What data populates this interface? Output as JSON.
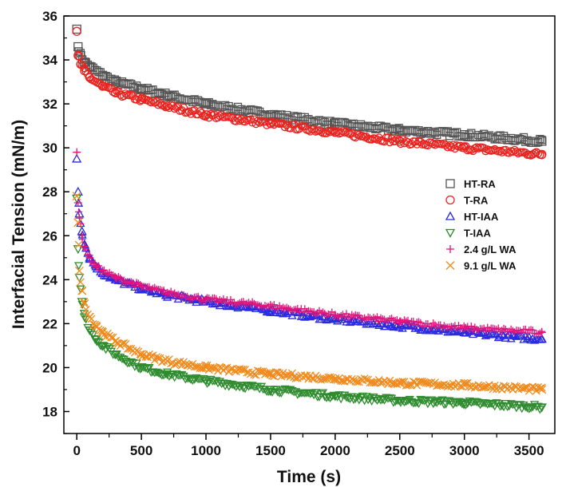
{
  "chart_data": {
    "type": "scatter",
    "title": "",
    "xlabel": "Time (s)",
    "ylabel": "Interfacial Tension (mN/m)",
    "xlim": [
      -100,
      3700
    ],
    "ylim": [
      17,
      36
    ],
    "xticks": [
      0,
      500,
      1000,
      1500,
      2000,
      2500,
      3000,
      3500
    ],
    "yticks": [
      18,
      20,
      22,
      24,
      26,
      28,
      30,
      32,
      34,
      36
    ],
    "grid": false,
    "legend": "right",
    "series": [
      {
        "name": "HT-RA",
        "marker": "square",
        "color": "#555555",
        "x": [
          0,
          10,
          30,
          60,
          100,
          200,
          300,
          500,
          700,
          1000,
          1500,
          2000,
          2500,
          3000,
          3600
        ],
        "y": [
          35.4,
          34.6,
          34.2,
          33.9,
          33.7,
          33.3,
          33.0,
          32.7,
          32.4,
          32.0,
          31.5,
          31.1,
          30.8,
          30.6,
          30.3
        ]
      },
      {
        "name": "T-RA",
        "marker": "circle",
        "color": "#e8231f",
        "x": [
          0,
          10,
          30,
          60,
          100,
          200,
          300,
          500,
          700,
          1000,
          1500,
          2000,
          2500,
          3000,
          3600
        ],
        "y": [
          35.3,
          34.2,
          33.8,
          33.5,
          33.2,
          32.8,
          32.5,
          32.2,
          31.9,
          31.5,
          31.1,
          30.7,
          30.3,
          30.0,
          29.7
        ]
      },
      {
        "name": "HT-IAA",
        "marker": "triangle-up",
        "color": "#2a2ae0",
        "x": [
          0,
          10,
          20,
          40,
          60,
          100,
          150,
          200,
          300,
          500,
          700,
          1000,
          1500,
          2000,
          2500,
          3000,
          3600
        ],
        "y": [
          29.5,
          28.0,
          27.0,
          26.2,
          25.6,
          25.0,
          24.6,
          24.3,
          24.0,
          23.6,
          23.3,
          23.0,
          22.6,
          22.2,
          21.9,
          21.6,
          21.3
        ]
      },
      {
        "name": "T-IAA",
        "marker": "triangle-down",
        "color": "#2e8b2e",
        "x": [
          0,
          10,
          20,
          40,
          60,
          100,
          150,
          200,
          300,
          500,
          700,
          1000,
          1500,
          2000,
          2500,
          3000,
          3600
        ],
        "y": [
          27.7,
          25.4,
          24.1,
          23.0,
          22.3,
          21.7,
          21.3,
          21.0,
          20.6,
          20.0,
          19.7,
          19.4,
          19.0,
          18.7,
          18.5,
          18.4,
          18.2
        ]
      },
      {
        "name": "2.4 g/L WA",
        "marker": "plus",
        "color": "#e0147a",
        "x": [
          0,
          10,
          20,
          40,
          60,
          100,
          150,
          200,
          300,
          500,
          700,
          1000,
          1500,
          2000,
          2500,
          3000,
          3600
        ],
        "y": [
          29.8,
          27.5,
          26.8,
          26.0,
          25.5,
          25.0,
          24.6,
          24.4,
          24.1,
          23.7,
          23.4,
          23.1,
          22.8,
          22.4,
          22.1,
          21.8,
          21.6
        ]
      },
      {
        "name": "9.1 g/L WA",
        "marker": "x",
        "color": "#f08a1c",
        "x": [
          0,
          10,
          20,
          40,
          60,
          100,
          150,
          200,
          300,
          500,
          700,
          1000,
          1500,
          2000,
          2500,
          3000,
          3600
        ],
        "y": [
          27.8,
          26.6,
          24.4,
          23.5,
          22.9,
          22.3,
          21.9,
          21.6,
          21.2,
          20.6,
          20.3,
          20.0,
          19.7,
          19.5,
          19.3,
          19.2,
          19.0
        ]
      }
    ]
  }
}
